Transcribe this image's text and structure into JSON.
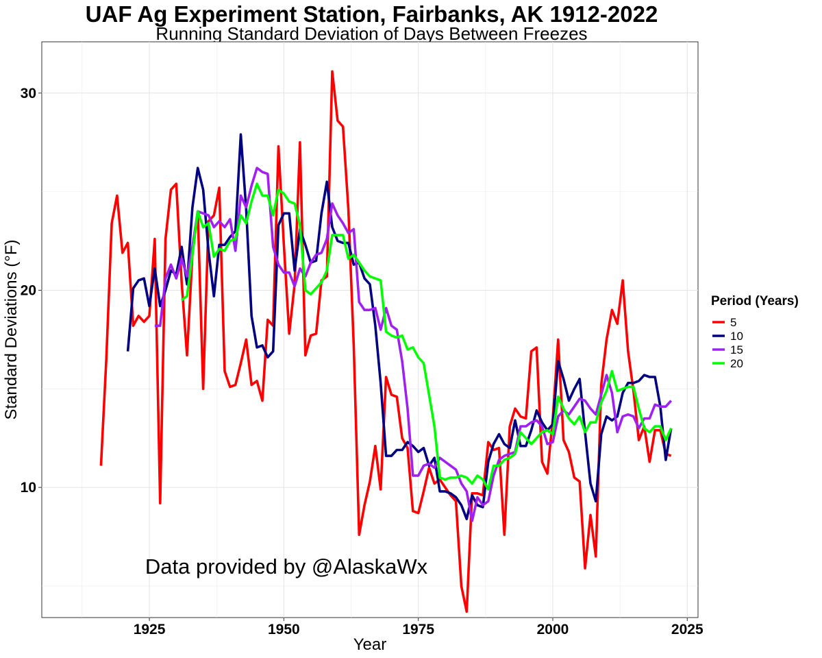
{
  "chart_data": {
    "type": "line",
    "title": "UAF Ag Experiment Station, Fairbanks, AK 1912-2022",
    "subtitle": "Running Standard Deviation of Days Between Freezes",
    "xlabel": "Year",
    "ylabel": "Standard Deviations (°F)",
    "xlim": [
      1905,
      2027
    ],
    "ylim": [
      3.4,
      32.6
    ],
    "x_ticks": [
      1925,
      1950,
      1975,
      2000,
      2025
    ],
    "x_tick_labels": [
      "1925",
      "1950",
      "1975",
      "2000",
      "2025"
    ],
    "y_ticks": [
      10,
      20,
      30
    ],
    "y_tick_labels": [
      "10",
      "20",
      "30"
    ],
    "grid": true,
    "legend": {
      "title": "Period (Years)",
      "position": "right"
    },
    "annotation": "Data provided by @AlaskaWx",
    "series": [
      {
        "name": "5",
        "color": "#ff0000",
        "x": [
          1916,
          1917,
          1918,
          1919,
          1920,
          1921,
          1922,
          1923,
          1924,
          1925,
          1926,
          1927,
          1928,
          1929,
          1930,
          1931,
          1932,
          1933,
          1934,
          1935,
          1936,
          1937,
          1938,
          1939,
          1940,
          1941,
          1942,
          1943,
          1944,
          1945,
          1946,
          1947,
          1948,
          1949,
          1950,
          1951,
          1952,
          1953,
          1954,
          1955,
          1956,
          1957,
          1958,
          1959,
          1960,
          1961,
          1962,
          1963,
          1964,
          1965,
          1966,
          1967,
          1968,
          1969,
          1970,
          1971,
          1972,
          1973,
          1974,
          1975,
          1976,
          1977,
          1978,
          1979,
          1980,
          1981,
          1982,
          1983,
          1984,
          1985,
          1986,
          1987,
          1988,
          1989,
          1990,
          1991,
          1992,
          1993,
          1994,
          1995,
          1996,
          1997,
          1998,
          1999,
          2000,
          2001,
          2002,
          2003,
          2004,
          2005,
          2006,
          2007,
          2008,
          2009,
          2010,
          2011,
          2012,
          2013,
          2014,
          2015,
          2016,
          2017,
          2018,
          2019,
          2020,
          2021,
          2022
        ],
        "values": [
          11.1,
          16.5,
          23.4,
          24.8,
          21.9,
          22.4,
          18.2,
          18.7,
          18.4,
          18.7,
          22.6,
          9.2,
          22.6,
          25.1,
          25.4,
          20.4,
          16.7,
          21.8,
          24.0,
          15.0,
          23.5,
          23.8,
          25.2,
          15.9,
          15.1,
          15.2,
          16.3,
          17.5,
          15.2,
          15.4,
          14.4,
          18.5,
          18.2,
          27.3,
          22.3,
          17.8,
          20.3,
          27.5,
          16.7,
          17.7,
          17.8,
          20.5,
          20.7,
          31.1,
          28.6,
          28.3,
          24.1,
          17.2,
          7.6,
          9.1,
          10.3,
          12.1,
          9.9,
          15.6,
          14.7,
          14.6,
          12.5,
          12.0,
          8.8,
          8.7,
          9.8,
          11.0,
          10.2,
          10.4,
          10.0,
          9.6,
          9.3,
          5.0,
          3.7,
          9.7,
          9.7,
          9.6,
          12.3,
          11.9,
          12.0,
          7.6,
          13.1,
          14.0,
          13.6,
          13.5,
          16.9,
          17.1,
          11.3,
          10.7,
          13.5,
          17.5,
          12.4,
          11.8,
          10.5,
          10.3,
          5.9,
          8.6,
          6.5,
          15.2,
          17.5,
          19.0,
          18.3,
          20.5,
          16.9,
          14.9,
          12.4,
          13.1,
          11.3,
          12.9,
          12.9,
          11.7,
          11.6
        ]
      },
      {
        "name": "10",
        "color": "#000080",
        "x": [
          1921,
          1922,
          1923,
          1924,
          1925,
          1926,
          1927,
          1928,
          1929,
          1930,
          1931,
          1932,
          1933,
          1934,
          1935,
          1936,
          1937,
          1938,
          1939,
          1940,
          1941,
          1942,
          1943,
          1944,
          1945,
          1946,
          1947,
          1948,
          1949,
          1950,
          1951,
          1952,
          1953,
          1954,
          1955,
          1956,
          1957,
          1958,
          1959,
          1960,
          1961,
          1962,
          1963,
          1964,
          1965,
          1966,
          1967,
          1968,
          1969,
          1970,
          1971,
          1972,
          1973,
          1974,
          1975,
          1976,
          1977,
          1978,
          1979,
          1980,
          1981,
          1982,
          1983,
          1984,
          1985,
          1986,
          1987,
          1988,
          1989,
          1990,
          1991,
          1992,
          1993,
          1994,
          1995,
          1996,
          1997,
          1998,
          1999,
          2000,
          2001,
          2002,
          2003,
          2004,
          2005,
          2006,
          2007,
          2008,
          2009,
          2010,
          2011,
          2012,
          2013,
          2014,
          2015,
          2016,
          2017,
          2018,
          2019,
          2020,
          2021,
          2022
        ],
        "values": [
          16.9,
          20.1,
          20.5,
          20.6,
          19.2,
          21.1,
          19.2,
          20.0,
          21.0,
          20.8,
          22.2,
          20.3,
          24.2,
          26.2,
          25.1,
          22.0,
          19.7,
          22.3,
          22.3,
          22.7,
          23.0,
          27.9,
          24.1,
          18.7,
          17.1,
          17.2,
          16.6,
          16.9,
          23.3,
          23.9,
          23.9,
          21.0,
          23.1,
          22.3,
          21.4,
          21.5,
          23.9,
          25.5,
          23.2,
          22.5,
          22.4,
          22.4,
          21.3,
          21.4,
          20.6,
          20.3,
          18.2,
          15.3,
          11.6,
          11.6,
          11.9,
          11.9,
          12.3,
          12.1,
          11.8,
          12.0,
          11.1,
          11.5,
          9.8,
          9.8,
          9.7,
          9.5,
          9.1,
          8.4,
          9.6,
          9.1,
          9.0,
          11.3,
          12.2,
          12.7,
          12.2,
          12.0,
          13.4,
          12.1,
          12.1,
          12.9,
          13.9,
          13.3,
          12.9,
          13.2,
          16.4,
          15.5,
          14.4,
          15.0,
          15.5,
          12.8,
          10.2,
          9.3,
          12.7,
          13.6,
          13.4,
          13.6,
          14.8,
          15.3,
          15.3,
          15.4,
          15.7,
          15.6,
          15.6,
          14.1,
          11.4,
          13.0
        ]
      },
      {
        "name": "15",
        "color": "#a020f0",
        "x": [
          1926,
          1927,
          1928,
          1929,
          1930,
          1931,
          1932,
          1933,
          1934,
          1935,
          1936,
          1937,
          1938,
          1939,
          1940,
          1941,
          1942,
          1943,
          1944,
          1945,
          1946,
          1947,
          1948,
          1949,
          1950,
          1951,
          1952,
          1953,
          1954,
          1955,
          1956,
          1957,
          1958,
          1959,
          1960,
          1961,
          1962,
          1963,
          1964,
          1965,
          1966,
          1967,
          1968,
          1969,
          1970,
          1971,
          1972,
          1973,
          1974,
          1975,
          1976,
          1977,
          1978,
          1979,
          1980,
          1981,
          1982,
          1983,
          1984,
          1985,
          1986,
          1987,
          1988,
          1989,
          1990,
          1991,
          1992,
          1993,
          1994,
          1995,
          1996,
          1997,
          1998,
          1999,
          2000,
          2001,
          2002,
          2003,
          2004,
          2005,
          2006,
          2007,
          2008,
          2009,
          2010,
          2011,
          2012,
          2013,
          2014,
          2015,
          2016,
          2017,
          2018,
          2019,
          2020,
          2021,
          2022
        ],
        "values": [
          18.2,
          18.2,
          20.6,
          21.3,
          20.6,
          21.6,
          20.7,
          22.2,
          24.0,
          23.9,
          23.8,
          23.2,
          23.5,
          23.2,
          23.6,
          22.0,
          24.8,
          24.2,
          25.3,
          26.2,
          26.0,
          25.9,
          22.2,
          21.3,
          20.9,
          20.9,
          20.2,
          21.1,
          20.7,
          21.4,
          21.8,
          21.9,
          22.6,
          24.4,
          23.8,
          23.4,
          22.9,
          23.1,
          19.4,
          19.0,
          19.0,
          19.1,
          18.0,
          19.1,
          18.2,
          18.0,
          16.4,
          14.0,
          10.6,
          10.6,
          11.1,
          11.2,
          11.0,
          11.5,
          11.3,
          11.1,
          10.9,
          10.2,
          9.8,
          8.3,
          9.5,
          9.1,
          9.3,
          10.6,
          11.4,
          11.6,
          11.7,
          11.8,
          13.1,
          13.1,
          13.3,
          13.4,
          13.1,
          12.2,
          12.3,
          13.6,
          13.9,
          13.7,
          14.1,
          14.5,
          14.4,
          14.0,
          13.7,
          14.7,
          15.7,
          14.8,
          12.8,
          13.6,
          13.7,
          13.6,
          13.0,
          13.5,
          13.5,
          14.2,
          14.1,
          14.1,
          14.4
        ]
      },
      {
        "name": "20",
        "color": "#00ff00",
        "x": [
          1931,
          1932,
          1933,
          1934,
          1935,
          1936,
          1937,
          1938,
          1939,
          1940,
          1941,
          1942,
          1943,
          1944,
          1945,
          1946,
          1947,
          1948,
          1949,
          1950,
          1951,
          1952,
          1953,
          1954,
          1955,
          1956,
          1957,
          1958,
          1959,
          1960,
          1961,
          1962,
          1963,
          1964,
          1965,
          1966,
          1967,
          1968,
          1969,
          1970,
          1971,
          1972,
          1973,
          1974,
          1975,
          1976,
          1977,
          1978,
          1979,
          1980,
          1981,
          1982,
          1983,
          1984,
          1985,
          1986,
          1987,
          1988,
          1989,
          1990,
          1991,
          1992,
          1993,
          1994,
          1995,
          1996,
          1997,
          1998,
          1999,
          2000,
          2001,
          2002,
          2003,
          2004,
          2005,
          2006,
          2007,
          2008,
          2009,
          2010,
          2011,
          2012,
          2013,
          2014,
          2015,
          2016,
          2017,
          2018,
          2019,
          2020,
          2021,
          2022
        ],
        "values": [
          19.5,
          19.7,
          21.8,
          24.0,
          23.2,
          23.4,
          21.7,
          22.1,
          22.0,
          22.5,
          22.6,
          23.8,
          23.4,
          24.5,
          25.4,
          24.8,
          24.8,
          23.8,
          25.1,
          24.9,
          24.5,
          24.4,
          23.3,
          20.0,
          19.8,
          20.1,
          20.4,
          21.0,
          22.8,
          22.8,
          22.8,
          21.6,
          21.8,
          21.4,
          21.0,
          20.7,
          20.6,
          20.5,
          17.9,
          17.7,
          17.6,
          17.7,
          17.0,
          17.1,
          16.6,
          16.3,
          14.7,
          13.1,
          10.5,
          10.4,
          10.5,
          10.5,
          10.6,
          10.5,
          10.2,
          10.6,
          10.4,
          9.9,
          11.1,
          11.1,
          11.4,
          11.5,
          11.7,
          12.8,
          12.5,
          12.2,
          12.5,
          12.8,
          12.9,
          12.7,
          14.6,
          14.0,
          13.5,
          13.2,
          13.6,
          12.8,
          13.3,
          13.3,
          14.3,
          14.9,
          15.9,
          14.9,
          15.0,
          15.1,
          15.1,
          14.0,
          13.0,
          12.8,
          13.1,
          13.1,
          12.4,
          13.0
        ]
      }
    ]
  }
}
